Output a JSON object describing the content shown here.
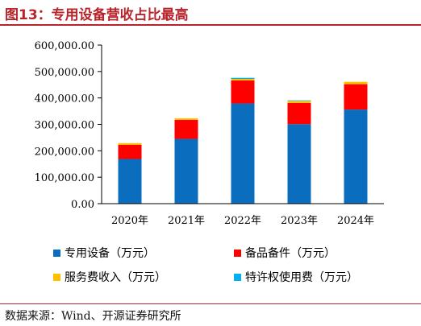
{
  "figure": {
    "title": "图13：专用设备营收占比最高",
    "source": "数据来源：Wind、开源证券研究所"
  },
  "chart_data": {
    "type": "bar",
    "stacked": true,
    "title": "",
    "xlabel": "",
    "ylabel": "",
    "ylim": [
      0,
      600000
    ],
    "y_ticks": [
      "0.00",
      "100,000.00",
      "200,000.00",
      "300,000.00",
      "400,000.00",
      "500,000.00",
      "600,000.00"
    ],
    "categories": [
      "2020年",
      "2021年",
      "2022年",
      "2023年",
      "2024年"
    ],
    "legend_position": "bottom",
    "grid": false,
    "series": [
      {
        "name": "专用设备（万元）",
        "color": "#0a6dbd",
        "values": [
          169000,
          245000,
          379000,
          301000,
          356000
        ]
      },
      {
        "name": "备品备件（万元）",
        "color": "#ff0000",
        "values": [
          54000,
          72000,
          87000,
          80000,
          96000
        ]
      },
      {
        "name": "服务费收入（万元）",
        "color": "#ffc000",
        "values": [
          6000,
          6000,
          6000,
          8000,
          9000
        ]
      },
      {
        "name": "特许权使用费（万元）",
        "color": "#00b0f0",
        "values": [
          0,
          0,
          4000,
          2000,
          0
        ]
      }
    ]
  }
}
